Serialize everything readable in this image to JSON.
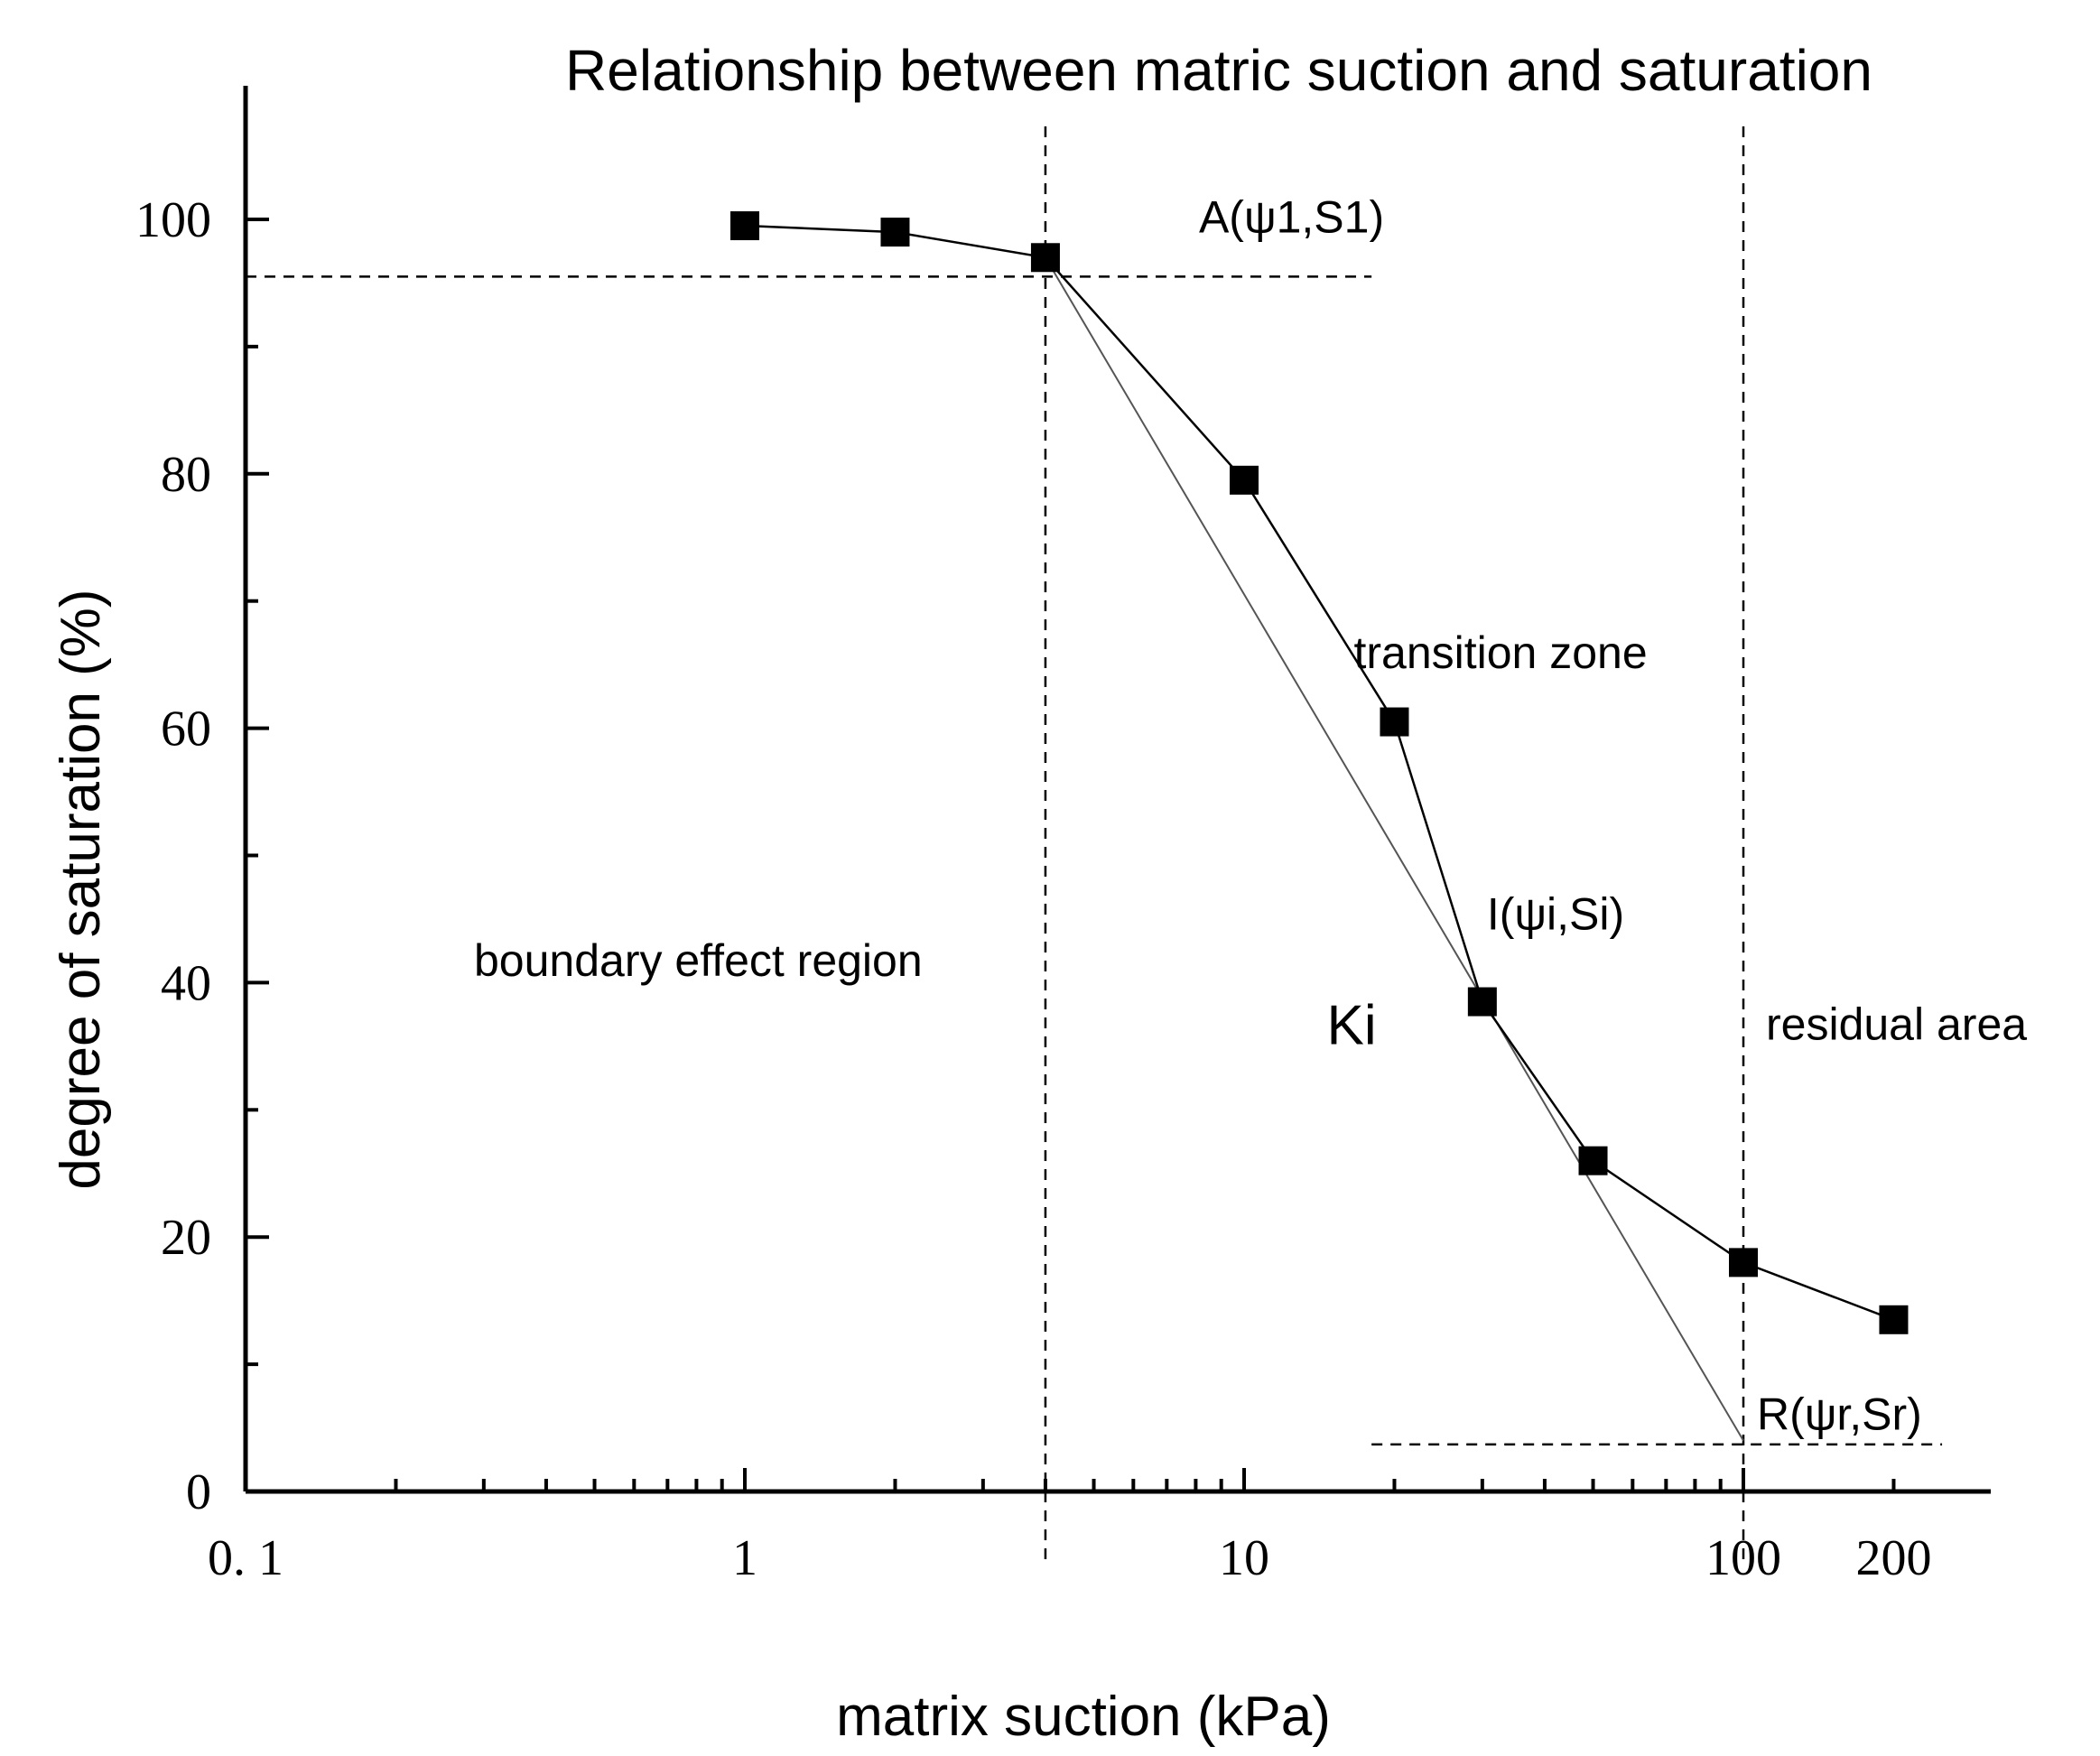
{
  "chart_data": {
    "type": "scatter",
    "title": "Relationship between matric suction and saturation",
    "xlabel": "matrix suction (kPa)",
    "ylabel": "degree of saturation (%)",
    "x_scale": "log",
    "xlim": [
      0.1,
      250
    ],
    "ylim": [
      0,
      110
    ],
    "x_ticks": [
      0.1,
      1,
      10,
      100,
      200
    ],
    "x_tick_labels": [
      "0. 1",
      "1",
      "10",
      "100",
      "200"
    ],
    "y_ticks": [
      0,
      20,
      40,
      60,
      80,
      100
    ],
    "y_tick_labels": [
      "0",
      "20",
      "40",
      "60",
      "80",
      "100"
    ],
    "grid": false,
    "series": [
      {
        "x": [
          1,
          2,
          4,
          10,
          20,
          30,
          50,
          100,
          200
        ],
        "y": [
          99.5,
          99,
          97,
          79.5,
          60.5,
          38.5,
          26,
          18,
          13.5
        ]
      }
    ],
    "tangent_line": {
      "x": [
        4,
        100
      ],
      "y": [
        97,
        4
      ]
    },
    "reference_lines": {
      "vertical": [
        4,
        100
      ],
      "horizontal": [
        {
          "y": 95.5,
          "x_from": 0.1,
          "x_to": 18
        },
        {
          "y": 3.7,
          "x_from": 18,
          "x_to": 250
        }
      ]
    },
    "annotations": [
      {
        "text": "A(ψ1,S1)",
        "x": 4,
        "y": 97
      },
      {
        "text": "transition zone",
        "x": 20,
        "y": 64
      },
      {
        "text": "I(ψi,Si)",
        "x": 30,
        "y": 38.5
      },
      {
        "text": "Ki",
        "x": 20,
        "y": 38
      },
      {
        "text": "boundary effect region",
        "x": 1,
        "y": 43
      },
      {
        "text": "residual area",
        "x": 100,
        "y": 38
      },
      {
        "text": "R(ψr,Sr)",
        "x": 100,
        "y": 4
      }
    ]
  }
}
